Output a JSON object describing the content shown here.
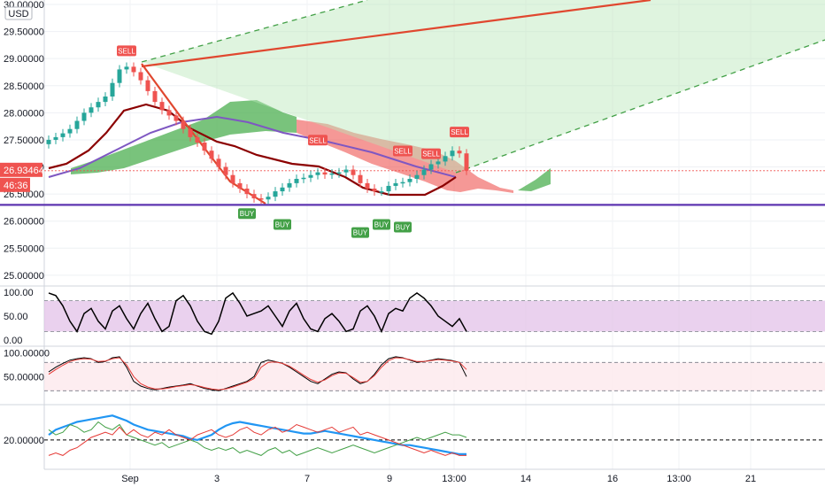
{
  "chart_data": {
    "type": "line",
    "currency": "USD",
    "x_ticks": [
      "Sep",
      "3",
      "7",
      "9",
      "13:00",
      "14",
      "16",
      "13:00",
      "21"
    ],
    "price_ticks": [
      "30.00000",
      "29.50000",
      "29.00000",
      "28.50000",
      "28.00000",
      "27.50000",
      "27.00000",
      "26.50000",
      "26.00000",
      "25.50000",
      "25.00000"
    ],
    "ylim": [
      24.9,
      30.0
    ],
    "last_price_label": "26.93464",
    "countdown_label": "46:36",
    "support_level": 26.3,
    "last_price": 26.93,
    "candles_close": [
      27.5,
      27.55,
      27.62,
      27.7,
      27.85,
      28.0,
      28.1,
      28.2,
      28.3,
      28.55,
      28.8,
      28.85,
      28.75,
      28.6,
      28.4,
      28.2,
      28.05,
      27.95,
      27.85,
      27.7,
      27.55,
      27.45,
      27.3,
      27.15,
      27.0,
      26.85,
      26.7,
      26.6,
      26.5,
      26.42,
      26.4,
      26.45,
      26.55,
      26.62,
      26.7,
      26.78,
      26.8,
      26.85,
      26.9,
      26.86,
      26.88,
      26.9,
      26.95,
      26.85,
      26.7,
      26.6,
      26.55,
      26.55,
      26.65,
      26.7,
      26.72,
      26.78,
      26.85,
      26.95,
      27.05,
      27.1,
      27.2,
      27.3,
      27.25,
      26.93
    ],
    "sell_signals": [
      {
        "i": 11,
        "price": 28.85,
        "label": "SELL"
      },
      {
        "i": 38,
        "price": 27.2,
        "label": "SELL"
      },
      {
        "i": 50,
        "price": 27.0,
        "label": "SELL"
      },
      {
        "i": 54,
        "price": 26.95,
        "label": "SELL"
      },
      {
        "i": 58,
        "price": 27.35,
        "label": "SELL"
      }
    ],
    "buy_signals": [
      {
        "i": 28,
        "price": 26.4,
        "label": "BUY"
      },
      {
        "i": 33,
        "price": 26.2,
        "label": "BUY"
      },
      {
        "i": 44,
        "price": 26.05,
        "label": "BUY"
      },
      {
        "i": 47,
        "price": 26.2,
        "label": "BUY"
      },
      {
        "i": 50,
        "price": 26.15,
        "label": "BUY"
      }
    ],
    "sub_panels": [
      {
        "name": "oscillator-1",
        "ticks": [
          "100.00",
          "50.00",
          "0.00"
        ],
        "ylim": [
          0,
          100
        ],
        "band": [
          20,
          80
        ],
        "series": [
          {
            "name": "",
            "color": "#000000",
            "values": [
              95,
              90,
              70,
              40,
              20,
              55,
              65,
              40,
              25,
              60,
              70,
              45,
              25,
              55,
              75,
              45,
              20,
              30,
              80,
              90,
              70,
              40,
              20,
              15,
              40,
              85,
              95,
              75,
              50,
              55,
              60,
              70,
              50,
              30,
              60,
              75,
              45,
              25,
              20,
              45,
              55,
              40,
              20,
              25,
              60,
              70,
              50,
              20,
              55,
              65,
              60,
              85,
              95,
              85,
              70,
              50,
              40,
              30,
              45,
              20
            ]
          }
        ]
      },
      {
        "name": "oscillator-2",
        "ticks": [
          "100.00000",
          "50.00000"
        ],
        "ylim": [
          0,
          105
        ],
        "band": [
          20,
          80
        ],
        "series": [
          {
            "name": "",
            "color": "#000000",
            "values": [
              60,
              70,
              78,
              85,
              88,
              90,
              88,
              80,
              82,
              90,
              92,
              70,
              40,
              30,
              25,
              22,
              25,
              28,
              30,
              32,
              35,
              30,
              25,
              22,
              20,
              25,
              30,
              35,
              40,
              50,
              80,
              85,
              82,
              78,
              70,
              60,
              50,
              40,
              35,
              45,
              55,
              60,
              58,
              45,
              35,
              40,
              55,
              75,
              88,
              92,
              90,
              85,
              80,
              82,
              85,
              88,
              86,
              84,
              80,
              50
            ]
          },
          {
            "name": "",
            "color": "#e53935",
            "values": [
              55,
              65,
              74,
              82,
              86,
              88,
              87,
              82,
              83,
              88,
              90,
              75,
              50,
              35,
              28,
              24,
              24,
              26,
              29,
              31,
              33,
              31,
              27,
              24,
              22,
              24,
              28,
              33,
              38,
              46,
              70,
              80,
              81,
              78,
              72,
              63,
              53,
              44,
              38,
              43,
              52,
              58,
              57,
              48,
              38,
              40,
              52,
              70,
              84,
              90,
              89,
              86,
              82,
              82,
              84,
              86,
              85,
              83,
              80,
              65
            ]
          }
        ]
      },
      {
        "name": "directional-index",
        "ticks": [
          "20.00000"
        ],
        "ylim": [
          10,
          32
        ],
        "ref": 20,
        "series": [
          {
            "name": "",
            "color": "#2196f3",
            "values": [
              22,
              24,
              25,
              26,
              27,
              27.5,
              28,
              28.5,
              29,
              29.5,
              28.5,
              27.5,
              26,
              25,
              24,
              23.5,
              23,
              22.5,
              22,
              21.5,
              20.5,
              20,
              21,
              22,
              24,
              25.5,
              26.5,
              27,
              26.5,
              26,
              25.5,
              25,
              24.5,
              24,
              23.5,
              23,
              22.5,
              22.5,
              23,
              23.5,
              23,
              22.5,
              22,
              21.5,
              21,
              20.5,
              20,
              19.5,
              19,
              18.5,
              18,
              18,
              17.5,
              17,
              16.5,
              16,
              15.5,
              15,
              14.5,
              14.5
            ]
          },
          {
            "name": "",
            "color": "#43a047",
            "values": [
              24,
              22,
              23,
              26,
              25,
              23,
              24,
              27,
              25,
              24,
              26,
              22,
              21,
              20,
              19,
              18,
              19,
              17,
              18,
              19,
              20,
              19,
              17,
              16,
              17,
              16,
              17,
              15,
              16,
              15,
              14,
              16,
              17,
              15,
              16,
              14,
              15,
              16,
              17,
              16,
              15,
              16,
              17,
              18,
              17,
              16,
              15,
              16,
              17,
              18,
              19,
              20,
              21,
              20,
              21,
              22,
              23,
              22,
              22,
              21
            ]
          },
          {
            "name": "",
            "color": "#e53935",
            "values": [
              14,
              15,
              14,
              16,
              17,
              19,
              21,
              22,
              23,
              22,
              25,
              22,
              24,
              22,
              21,
              23,
              22,
              24,
              22,
              21,
              20,
              22,
              23,
              24,
              22,
              21,
              22,
              24,
              25,
              23,
              22,
              24,
              25,
              23,
              24,
              26,
              25,
              24,
              23,
              24,
              25,
              23,
              24,
              25,
              22,
              23,
              22,
              21,
              20,
              19,
              18,
              17,
              16,
              15,
              16,
              15,
              14,
              15,
              14,
              14
            ]
          }
        ]
      }
    ]
  }
}
